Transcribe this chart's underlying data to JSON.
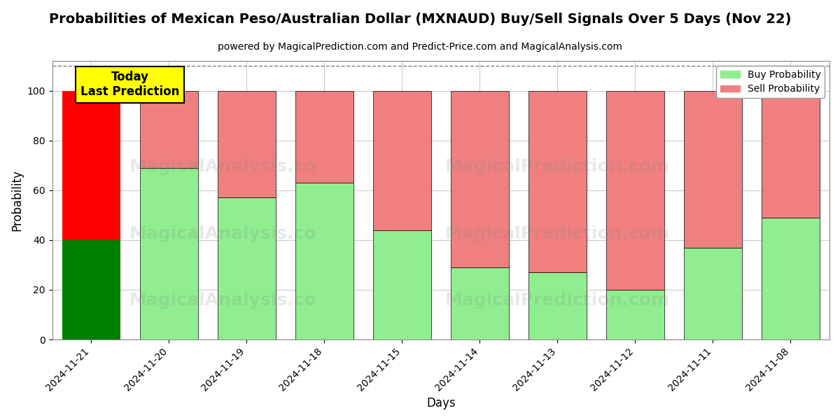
{
  "title": "Probabilities of Mexican Peso/Australian Dollar (MXNAUD) Buy/Sell Signals Over 5 Days (Nov 22)",
  "subtitle": "powered by MagicalPrediction.com and Predict-Price.com and MagicalAnalysis.com",
  "xlabel": "Days",
  "ylabel": "Probability",
  "dates": [
    "2024-11-21",
    "2024-11-20",
    "2024-11-19",
    "2024-11-18",
    "2024-11-15",
    "2024-11-14",
    "2024-11-13",
    "2024-11-12",
    "2024-11-11",
    "2024-11-08"
  ],
  "buy_values": [
    40,
    69,
    57,
    63,
    44,
    29,
    27,
    20,
    37,
    49
  ],
  "sell_values": [
    60,
    31,
    43,
    37,
    56,
    71,
    73,
    80,
    63,
    51
  ],
  "today_buy_color": "#008000",
  "today_sell_color": "#ff0000",
  "buy_color": "#90ee90",
  "sell_color": "#f08080",
  "today_label_bg": "#ffff00",
  "today_label_text": "Today\nLast Prediction",
  "legend_buy": "Buy Probability",
  "legend_sell": "Sell Probability",
  "ylim": [
    0,
    112
  ],
  "dashed_line_y": 110,
  "background_color": "#ffffff",
  "grid_color": "#cccccc",
  "title_fontsize": 14,
  "subtitle_fontsize": 10,
  "bar_width": 0.75
}
